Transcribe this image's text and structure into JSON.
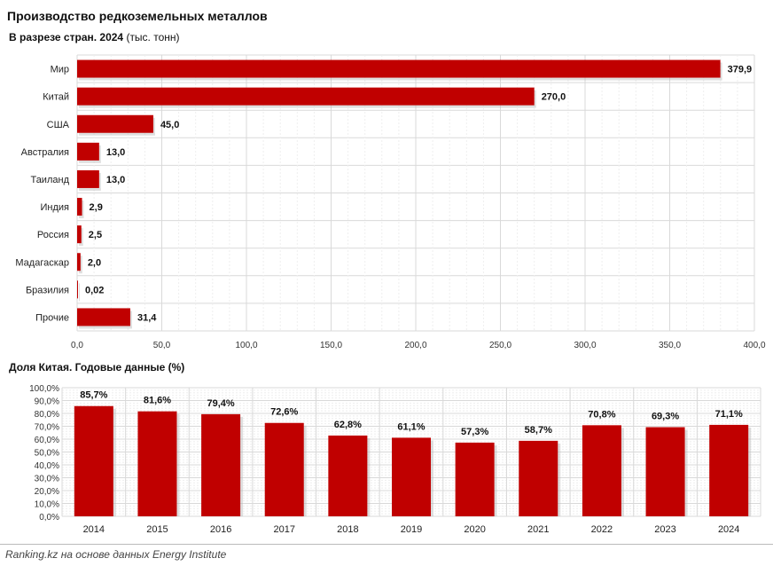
{
  "chart_data": [
    {
      "type": "bar",
      "orientation": "horizontal",
      "title": "Производство редкоземельных металлов",
      "subtitle_bold": "В разрезе стран. 2024",
      "subtitle_rest": " (тыс. тонн)",
      "categories": [
        "Мир",
        "Китай",
        "США",
        "Австралия",
        "Таиланд",
        "Индия",
        "Россия",
        "Мадагаскар",
        "Бразилия",
        "Прочие"
      ],
      "values": [
        379.9,
        270.0,
        45.0,
        13.0,
        13.0,
        2.9,
        2.5,
        2.0,
        0.02,
        31.4
      ],
      "value_labels": [
        "379,9",
        "270,0",
        "45,0",
        "13,0",
        "13,0",
        "2,9",
        "2,5",
        "2,0",
        "0,02",
        "31,4"
      ],
      "xlim": [
        0,
        400
      ],
      "xticks": [
        "0,0",
        "50,0",
        "100,0",
        "150,0",
        "200,0",
        "250,0",
        "300,0",
        "350,0",
        "400,0"
      ],
      "bar_color": "#C00000",
      "grid": true
    },
    {
      "type": "bar",
      "orientation": "vertical",
      "title": "Доля Китая. Годовые данные (%)",
      "categories": [
        "2014",
        "2015",
        "2016",
        "2017",
        "2018",
        "2019",
        "2020",
        "2021",
        "2022",
        "2023",
        "2024"
      ],
      "values": [
        85.7,
        81.6,
        79.4,
        72.6,
        62.8,
        61.1,
        57.3,
        58.7,
        70.8,
        69.3,
        71.1
      ],
      "value_labels": [
        "85,7%",
        "81,6%",
        "79,4%",
        "72,6%",
        "62,8%",
        "61,1%",
        "57,3%",
        "58,7%",
        "70,8%",
        "69,3%",
        "71,1%"
      ],
      "ylim": [
        0,
        100
      ],
      "yticks": [
        "0,0%",
        "10,0%",
        "20,0%",
        "30,0%",
        "40,0%",
        "50,0%",
        "60,0%",
        "70,0%",
        "80,0%",
        "90,0%",
        "100,0%"
      ],
      "bar_color": "#C00000",
      "grid": true
    }
  ],
  "source": "Ranking.kz на основе данных Energy Institute"
}
